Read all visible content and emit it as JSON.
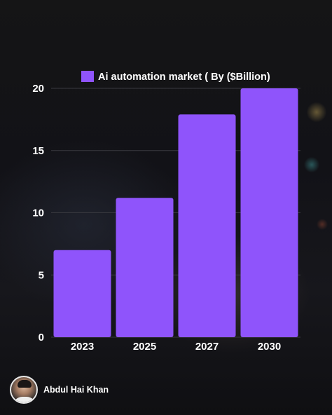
{
  "chart_data": {
    "type": "bar",
    "categories": [
      "2023",
      "2025",
      "2027",
      "2030"
    ],
    "series": [
      {
        "name": "Ai automation market ( By ($Billion)",
        "values": [
          7,
          11.2,
          17.9,
          20
        ]
      }
    ],
    "title": "",
    "xlabel": "",
    "ylabel": "",
    "ylim": [
      0,
      20
    ],
    "yticks": [
      0,
      5,
      10,
      15,
      20
    ],
    "grid": true,
    "legend_position": "top-center",
    "colors": {
      "bar": "#8f54fb",
      "grid": "#3a3a40",
      "text": "#ffffff"
    }
  },
  "author": {
    "name": "Abdul Hai Khan"
  }
}
